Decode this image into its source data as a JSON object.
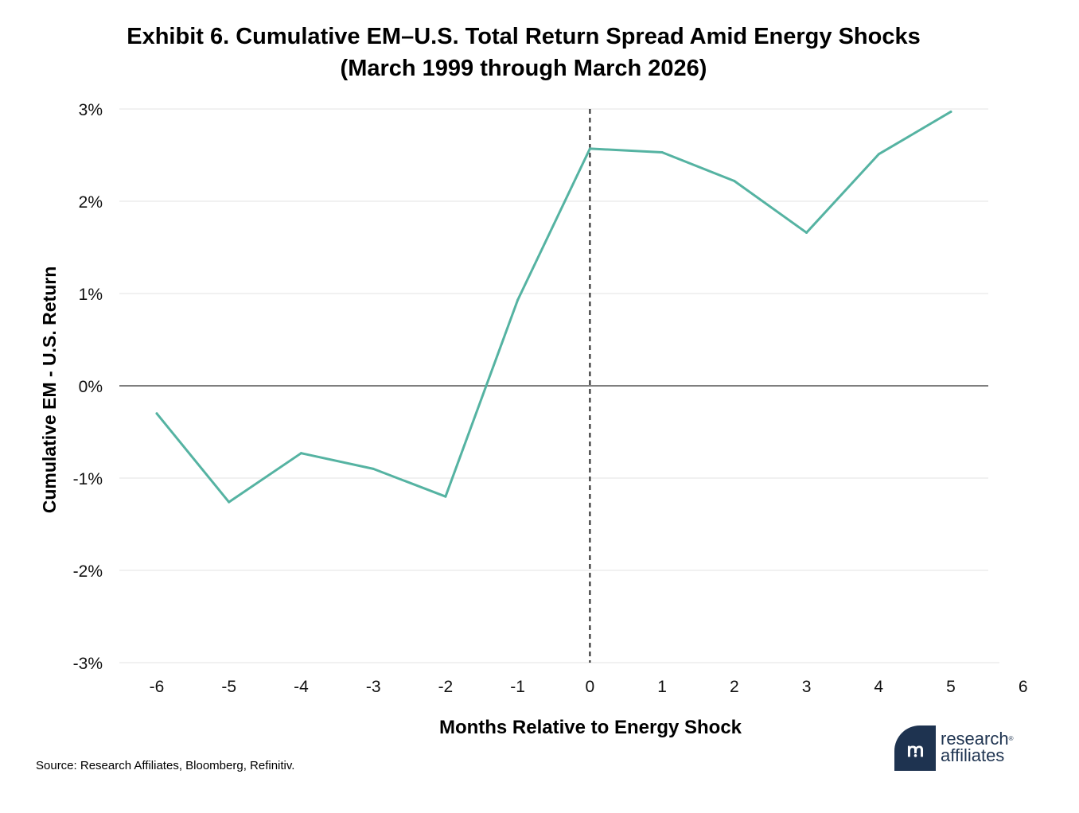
{
  "header": {
    "title_line1": "Exhibit 6. Cumulative EM–U.S. Total Return Spread Amid Energy Shocks",
    "title_line2": "(March 1999 through March 2026)"
  },
  "chart_data": {
    "type": "line",
    "xlabel": "Months Relative to Energy Shock",
    "ylabel": "Cumulative EM - U.S. Return",
    "x": [
      -6,
      -5,
      -4,
      -3,
      -2,
      -1,
      0,
      1,
      2,
      3,
      4,
      5
    ],
    "series": [
      {
        "values": [
          -0.3,
          -1.26,
          -0.73,
          -0.9,
          -1.2,
          0.93,
          2.57,
          2.53,
          2.22,
          1.66,
          2.51,
          2.97
        ]
      }
    ],
    "xlim": [
      -6.5,
      6
    ],
    "ylim": [
      -3,
      3
    ],
    "xticks": [
      "-6",
      "-5",
      "-4",
      "-3",
      "-2",
      "-1",
      "0",
      "1",
      "2",
      "3",
      "4",
      "5",
      "6"
    ],
    "yticks": [
      "3%",
      "2%",
      "1%",
      "0%",
      "-1%",
      "-2%",
      "-3%"
    ],
    "vline_x": 0,
    "grid": true,
    "line_color": "#55b3a2"
  },
  "footer": {
    "source": "Source: Research Affiliates, Bloomberg, Refinitiv."
  },
  "logo": {
    "mark": "ꭑ",
    "line1": "research",
    "registered": "®",
    "line2": "affiliates"
  }
}
